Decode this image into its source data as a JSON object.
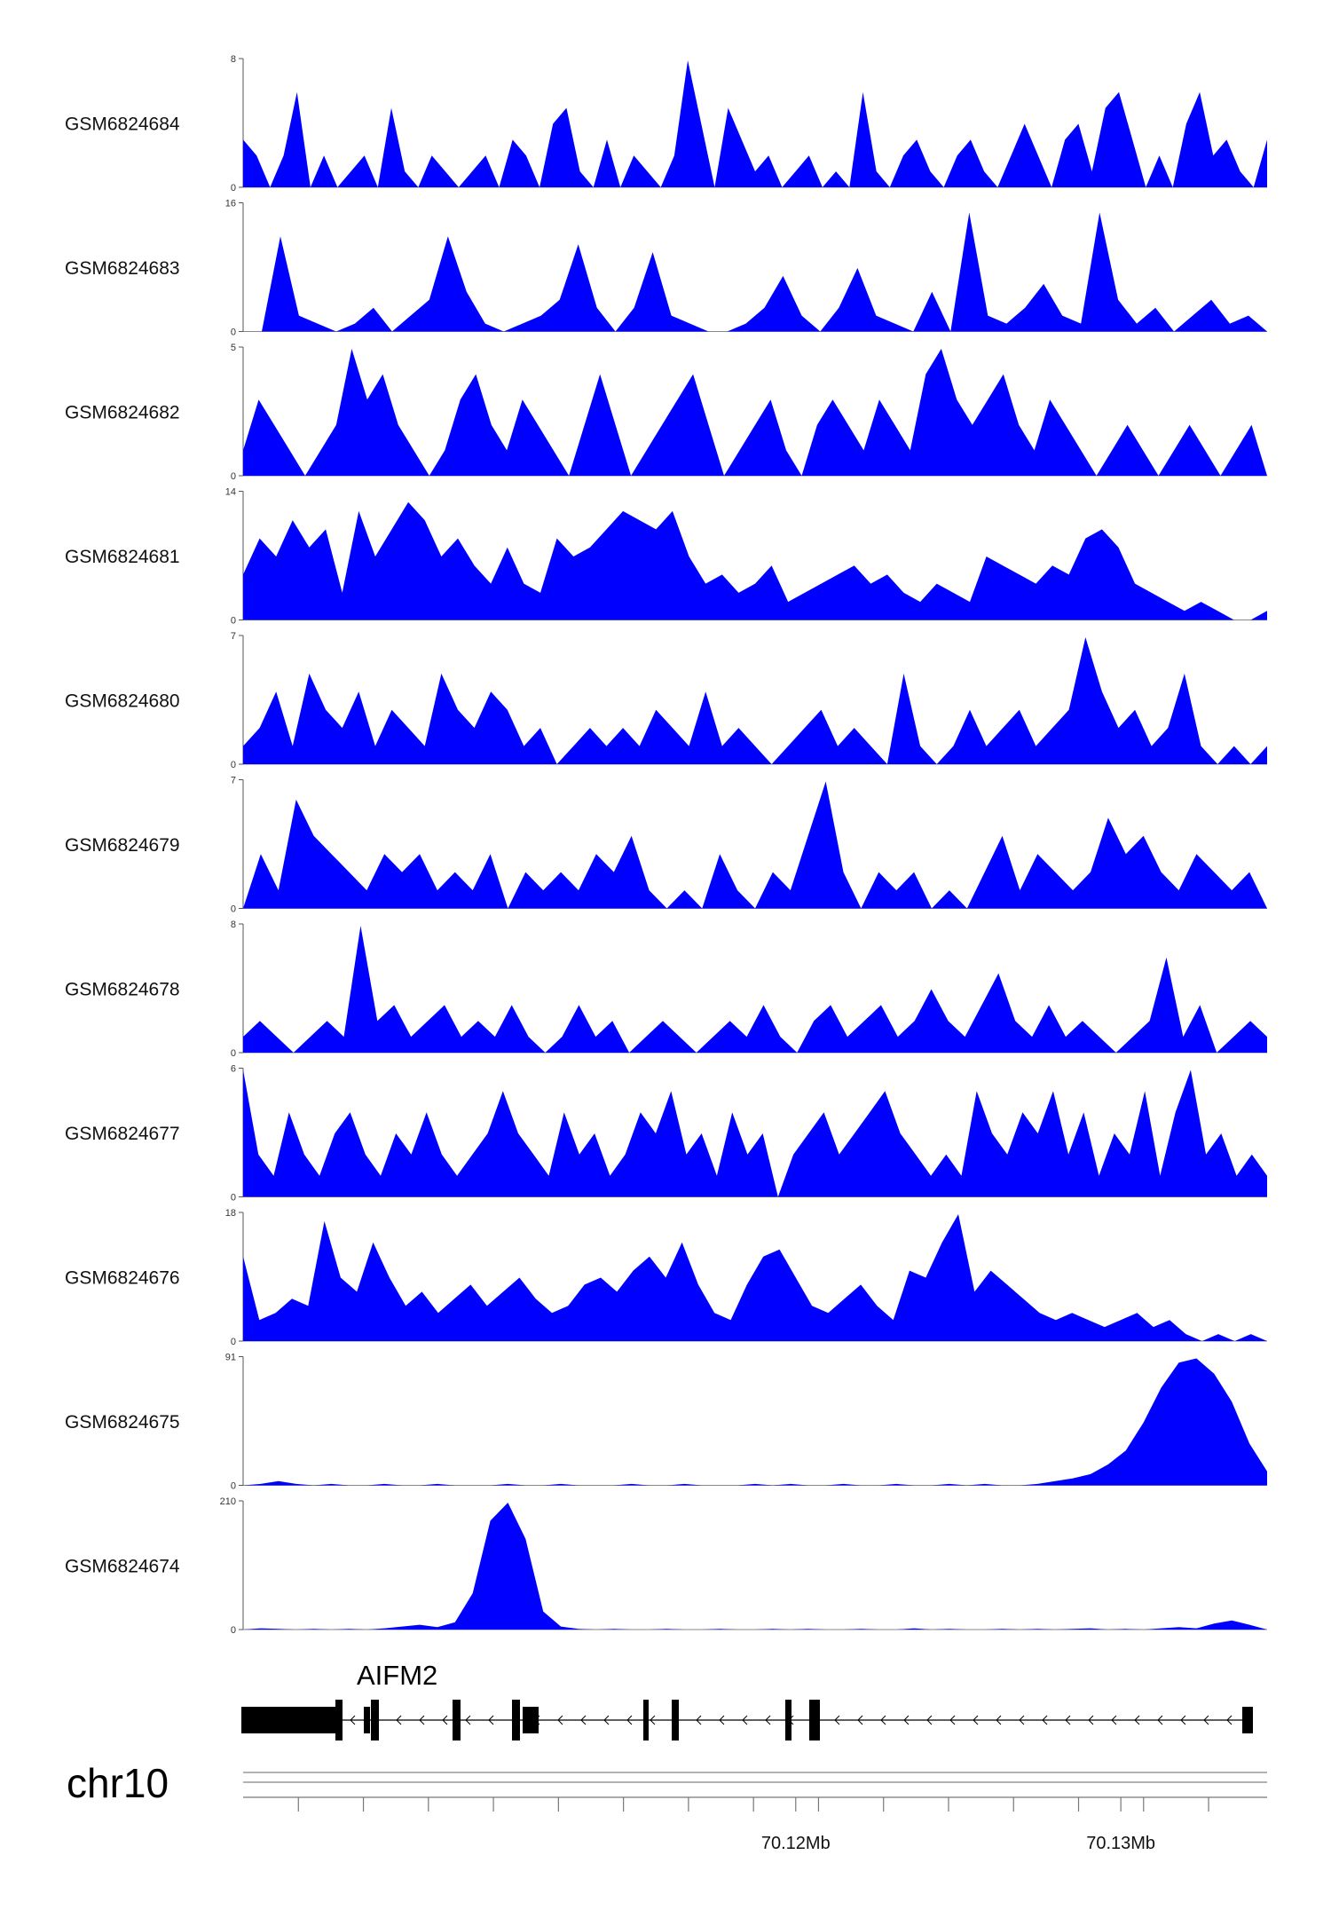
{
  "chart_data": {
    "type": "area",
    "title": "",
    "fill_color": "#0000ff",
    "chromosome": "chr10",
    "x_range_bp": [
      70103000,
      70134500
    ],
    "x_tick_labels": [
      {
        "value": 70120000,
        "label": "70.12Mb"
      },
      {
        "value": 70130000,
        "label": "70.13Mb"
      }
    ],
    "x_minor_ticks": [
      70104700,
      70106700,
      70108700,
      70110700,
      70112700,
      70114700,
      70116700,
      70118700,
      70120700,
      70122700,
      70124700,
      70126700,
      70128700,
      70130700,
      70132700
    ],
    "tracks": [
      {
        "name": "GSM6824684",
        "ymax": 8,
        "ymin_label": "0",
        "ymax_label": "8",
        "values": [
          3,
          2,
          0,
          2,
          6,
          0,
          2,
          0,
          1,
          2,
          0,
          5,
          1,
          0,
          2,
          1,
          0,
          1,
          2,
          0,
          3,
          2,
          0,
          4,
          5,
          1,
          0,
          3,
          0,
          2,
          1,
          0,
          2,
          8,
          4,
          0,
          5,
          3,
          1,
          2,
          0,
          1,
          2,
          0,
          1,
          0,
          6,
          1,
          0,
          2,
          3,
          1,
          0,
          2,
          3,
          1,
          0,
          2,
          4,
          2,
          0,
          3,
          4,
          1,
          5,
          6,
          3,
          0,
          2,
          0,
          4,
          6,
          2,
          3,
          1,
          0,
          3
        ]
      },
      {
        "name": "GSM6824683",
        "ymax": 16,
        "ymin_label": "0",
        "ymax_label": "16",
        "values": [
          0,
          0,
          12,
          2,
          1,
          0,
          1,
          3,
          0,
          2,
          4,
          12,
          5,
          1,
          0,
          1,
          2,
          4,
          11,
          3,
          0,
          3,
          10,
          2,
          1,
          0,
          0,
          1,
          3,
          7,
          2,
          0,
          3,
          8,
          2,
          1,
          0,
          5,
          0,
          15,
          2,
          1,
          3,
          6,
          2,
          1,
          15,
          4,
          1,
          3,
          0,
          2,
          4,
          1,
          2,
          0
        ]
      },
      {
        "name": "GSM6824682",
        "ymax": 5,
        "ymin_label": "0",
        "ymax_label": "5",
        "values": [
          1,
          3,
          2,
          1,
          0,
          1,
          2,
          5,
          3,
          4,
          2,
          1,
          0,
          1,
          3,
          4,
          2,
          1,
          3,
          2,
          1,
          0,
          2,
          4,
          2,
          0,
          1,
          2,
          3,
          4,
          2,
          0,
          1,
          2,
          3,
          1,
          0,
          2,
          3,
          2,
          1,
          3,
          2,
          1,
          4,
          5,
          3,
          2,
          3,
          4,
          2,
          1,
          3,
          2,
          1,
          0,
          1,
          2,
          1,
          0,
          1,
          2,
          1,
          0,
          1,
          2,
          0
        ]
      },
      {
        "name": "GSM6824681",
        "ymax": 14,
        "ymin_label": "0",
        "ymax_label": "14",
        "values": [
          5,
          9,
          7,
          11,
          8,
          10,
          3,
          12,
          7,
          10,
          13,
          11,
          7,
          9,
          6,
          4,
          8,
          4,
          3,
          9,
          7,
          8,
          10,
          12,
          11,
          10,
          12,
          7,
          4,
          5,
          3,
          4,
          6,
          2,
          3,
          4,
          5,
          6,
          4,
          5,
          3,
          2,
          4,
          3,
          2,
          7,
          6,
          5,
          4,
          6,
          5,
          9,
          10,
          8,
          4,
          3,
          2,
          1,
          2,
          1,
          0,
          0,
          1
        ]
      },
      {
        "name": "GSM6824680",
        "ymax": 7,
        "ymin_label": "0",
        "ymax_label": "7",
        "values": [
          1,
          2,
          4,
          1,
          5,
          3,
          2,
          4,
          1,
          3,
          2,
          1,
          5,
          3,
          2,
          4,
          3,
          1,
          2,
          0,
          1,
          2,
          1,
          2,
          1,
          3,
          2,
          1,
          4,
          1,
          2,
          1,
          0,
          1,
          2,
          3,
          1,
          2,
          1,
          0,
          5,
          1,
          0,
          1,
          3,
          1,
          2,
          3,
          1,
          2,
          3,
          7,
          4,
          2,
          3,
          1,
          2,
          5,
          1,
          0,
          1,
          0,
          1
        ]
      },
      {
        "name": "GSM6824679",
        "ymax": 7,
        "ymin_label": "0",
        "ymax_label": "7",
        "values": [
          0,
          3,
          1,
          6,
          4,
          3,
          2,
          1,
          3,
          2,
          3,
          1,
          2,
          1,
          3,
          0,
          2,
          1,
          2,
          1,
          3,
          2,
          4,
          1,
          0,
          1,
          0,
          3,
          1,
          0,
          2,
          1,
          4,
          7,
          2,
          0,
          2,
          1,
          2,
          0,
          1,
          0,
          2,
          4,
          1,
          3,
          2,
          1,
          2,
          5,
          3,
          4,
          2,
          1,
          3,
          2,
          1,
          2,
          0
        ]
      },
      {
        "name": "GSM6824678",
        "ymax": 8,
        "ymin_label": "0",
        "ymax_label": "8",
        "values": [
          1,
          2,
          1,
          0,
          1,
          2,
          1,
          8,
          2,
          3,
          1,
          2,
          3,
          1,
          2,
          1,
          3,
          1,
          0,
          1,
          3,
          1,
          2,
          0,
          1,
          2,
          1,
          0,
          1,
          2,
          1,
          3,
          1,
          0,
          2,
          3,
          1,
          2,
          3,
          1,
          2,
          4,
          2,
          1,
          3,
          5,
          2,
          1,
          3,
          1,
          2,
          1,
          0,
          1,
          2,
          6,
          1,
          3,
          0,
          1,
          2,
          1
        ]
      },
      {
        "name": "GSM6824677",
        "ymax": 6,
        "ymin_label": "0",
        "ymax_label": "6",
        "values": [
          6,
          2,
          1,
          4,
          2,
          1,
          3,
          4,
          2,
          1,
          3,
          2,
          4,
          2,
          1,
          2,
          3,
          5,
          3,
          2,
          1,
          4,
          2,
          3,
          1,
          2,
          4,
          3,
          5,
          2,
          3,
          1,
          4,
          2,
          3,
          0,
          2,
          3,
          4,
          2,
          3,
          4,
          5,
          3,
          2,
          1,
          2,
          1,
          5,
          3,
          2,
          4,
          3,
          5,
          2,
          4,
          1,
          3,
          2,
          5,
          1,
          4,
          6,
          2,
          3,
          1,
          2,
          1
        ]
      },
      {
        "name": "GSM6824676",
        "ymax": 18,
        "ymin_label": "0",
        "ymax_label": "18",
        "values": [
          12,
          3,
          4,
          6,
          5,
          17,
          9,
          7,
          14,
          9,
          5,
          7,
          4,
          6,
          8,
          5,
          7,
          9,
          6,
          4,
          5,
          8,
          9,
          7,
          10,
          12,
          9,
          14,
          8,
          4,
          3,
          8,
          12,
          13,
          9,
          5,
          4,
          6,
          8,
          5,
          3,
          10,
          9,
          14,
          18,
          7,
          10,
          8,
          6,
          4,
          3,
          4,
          3,
          2,
          3,
          4,
          2,
          3,
          1,
          0,
          1,
          0,
          1,
          0
        ]
      },
      {
        "name": "GSM6824675",
        "ymax": 91,
        "ymin_label": "0",
        "ymax_label": "91",
        "values": [
          0,
          1,
          3,
          1,
          0,
          1,
          0,
          0,
          1,
          0,
          0,
          1,
          0,
          0,
          0,
          1,
          0,
          0,
          1,
          0,
          0,
          0,
          1,
          0,
          0,
          1,
          0,
          0,
          0,
          1,
          0,
          1,
          0,
          0,
          1,
          0,
          0,
          1,
          0,
          0,
          1,
          0,
          1,
          0,
          0,
          1,
          3,
          5,
          8,
          15,
          25,
          45,
          70,
          88,
          91,
          80,
          60,
          30,
          10
        ]
      },
      {
        "name": "GSM6824674",
        "ymax": 210,
        "ymin_label": "0",
        "ymax_label": "210",
        "values": [
          0,
          2,
          1,
          0,
          1,
          0,
          1,
          0,
          2,
          5,
          8,
          4,
          12,
          60,
          180,
          210,
          150,
          30,
          5,
          1,
          0,
          1,
          0,
          0,
          1,
          0,
          0,
          1,
          0,
          0,
          1,
          0,
          1,
          0,
          0,
          1,
          0,
          0,
          2,
          0,
          1,
          0,
          0,
          1,
          0,
          1,
          0,
          1,
          2,
          0,
          1,
          0,
          2,
          4,
          2,
          10,
          15,
          8,
          0
        ]
      }
    ],
    "gene": {
      "name": "AIFM2",
      "strand": "-"
    }
  }
}
